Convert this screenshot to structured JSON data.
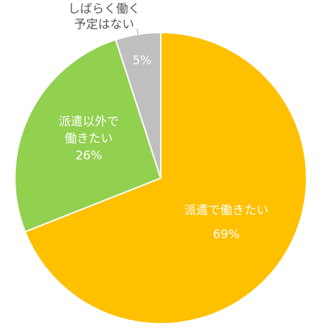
{
  "chart_data": {
    "type": "pie",
    "start_angle": "12 o'clock",
    "direction": "clockwise",
    "slices": [
      {
        "label": "派遣で働きたい",
        "value": 69,
        "value_label": "69%",
        "color": "#ffc000"
      },
      {
        "label": "派遣以外で働きたい",
        "value": 26,
        "value_label": "26%",
        "color": "#92d050"
      },
      {
        "label": "しばらく働く予定はない",
        "value": 5,
        "value_label": "5%",
        "color": "#bfbfbf"
      }
    ],
    "label_lines": {
      "slice_0": [
        "派遣で働きたい",
        "69%"
      ],
      "slice_1": [
        "派遣以外で",
        "働きたい",
        "26%"
      ],
      "slice_2_outside": [
        "しばらく働く",
        "予定はない"
      ],
      "slice_2_inside": [
        "5%"
      ]
    },
    "legend": "none"
  }
}
